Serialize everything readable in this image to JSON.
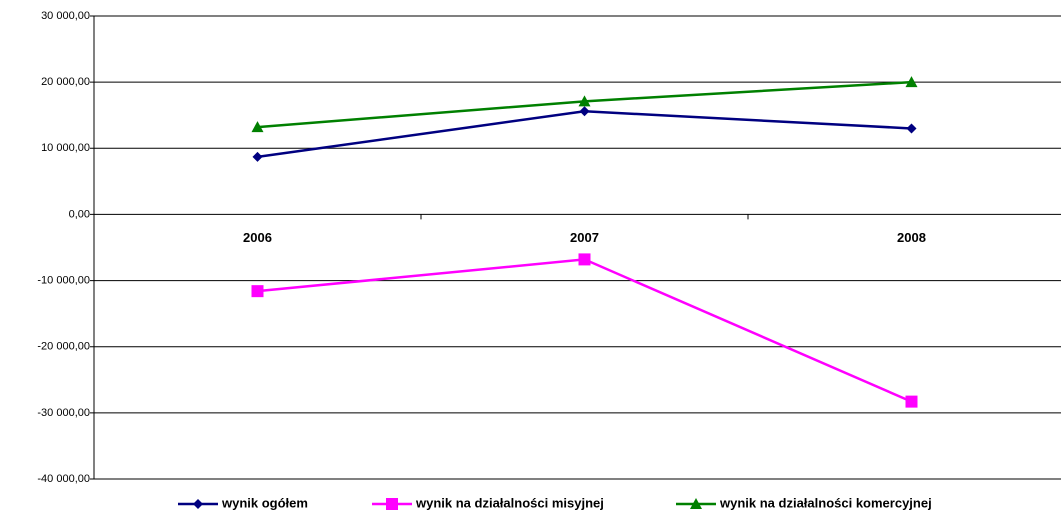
{
  "chart_data": {
    "type": "line",
    "categories": [
      "2006",
      "2007",
      "2008"
    ],
    "series": [
      {
        "name": "wynik ogółem",
        "color": "#000080",
        "marker": "diamond",
        "values": [
          8700,
          15600,
          13000
        ]
      },
      {
        "name": "wynik na działalności misyjnej",
        "color": "#ff00ff",
        "marker": "square",
        "values": [
          -11600,
          -6800,
          -28300
        ]
      },
      {
        "name": "wynik na działalności komercyjnej",
        "color": "#008000",
        "marker": "triangle",
        "values": [
          13200,
          17100,
          20000
        ]
      }
    ],
    "ylim": [
      -40000,
      30000
    ],
    "yticks": [
      {
        "value": -40000,
        "label": "-40 000,00"
      },
      {
        "value": -30000,
        "label": "-30 000,00"
      },
      {
        "value": -20000,
        "label": "-20 000,00"
      },
      {
        "value": -10000,
        "label": "-10 000,00"
      },
      {
        "value": 0,
        "label": "0,00"
      },
      {
        "value": 10000,
        "label": "10 000,00"
      },
      {
        "value": 20000,
        "label": "20 000,00"
      },
      {
        "value": 30000,
        "label": "30 000,00"
      }
    ],
    "grid": true,
    "legend": "bottom"
  }
}
